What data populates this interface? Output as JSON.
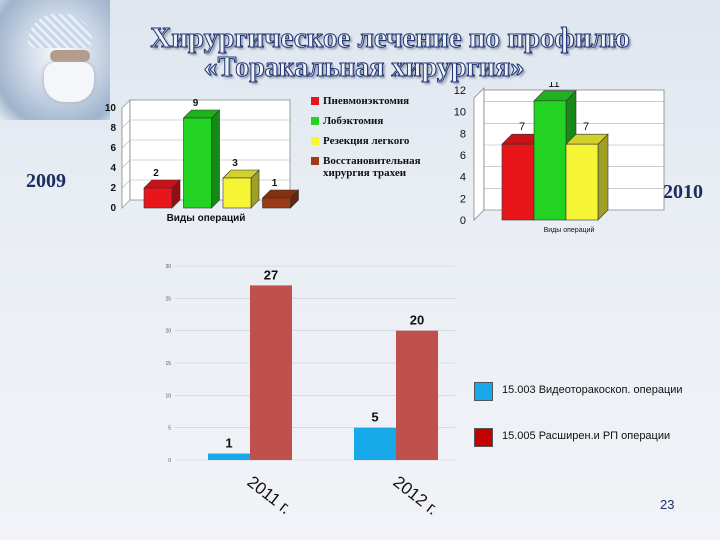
{
  "slide": {
    "title_line1": "Хирургическое лечение по профилю",
    "title_line2": "«Торакальная хирургия»",
    "year_2009": "2009",
    "year_2010": "2010",
    "page_number": "23"
  },
  "chart_data": [
    {
      "type": "bar",
      "title": "",
      "xlabel": "Виды операций",
      "ylabel": "",
      "ylim": [
        0,
        10
      ],
      "yticks": [
        "0",
        "2",
        "4",
        "6",
        "8",
        "10"
      ],
      "categories": [
        "Пневмонэктомия",
        "Лобэктомия",
        "Резекция легкого",
        "Восстановительная хирургия трахеи"
      ],
      "values": [
        2,
        9,
        3,
        1
      ],
      "value_labels": [
        "2",
        "9",
        "3",
        "1"
      ],
      "colors": [
        "#e8161b",
        "#22d322",
        "#f5f536",
        "#9b3a14"
      ],
      "legend": [
        "Пневмонэктомия",
        "Лобэктомия",
        "Резекция легкого",
        "Восстановительная хирургия трахеи"
      ],
      "legend_position": "right",
      "grid": true
    },
    {
      "type": "bar",
      "title": "",
      "xlabel": "Виды операций",
      "ylabel": "",
      "ylim": [
        0,
        12
      ],
      "yticks": [
        "0",
        "2",
        "4",
        "6",
        "8",
        "10",
        "12"
      ],
      "categories": [
        "Пневмонэктомия",
        "Лобэктомия",
        "Резекция легкого"
      ],
      "values": [
        7,
        11,
        7
      ],
      "value_labels": [
        "7",
        "11",
        "7"
      ],
      "colors": [
        "#e8161b",
        "#22d322",
        "#f5f536"
      ],
      "grid": true
    },
    {
      "type": "bar",
      "title": "",
      "xlabel": "",
      "ylabel": "",
      "ylim": [
        0,
        30
      ],
      "yticks": [
        "0",
        "5",
        "10",
        "15",
        "20",
        "25",
        "30"
      ],
      "categories": [
        "2011 г.",
        "2012 г."
      ],
      "series": [
        {
          "name": "15.003 Видеоторакоскоп. операции",
          "values": [
            1,
            5
          ],
          "color": "#17a9ea",
          "value_labels": [
            "1",
            "5"
          ]
        },
        {
          "name": "15.005 Расширен.и РП операции",
          "values": [
            27,
            20
          ],
          "color": "#c0504d",
          "value_labels": [
            "27",
            "20"
          ]
        }
      ],
      "legend_position": "right",
      "grid": true
    }
  ]
}
